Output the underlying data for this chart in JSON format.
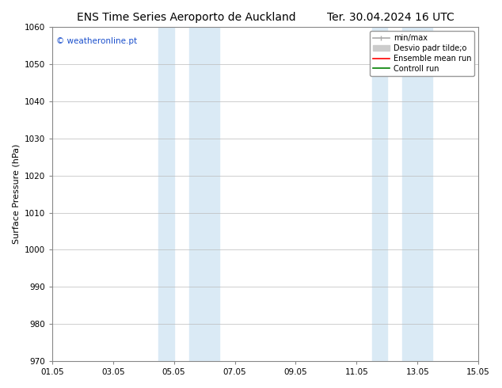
{
  "title_left": "ENS Time Series Aeroporto de Auckland",
  "title_right": "Ter. 30.04.2024 16 UTC",
  "ylabel": "Surface Pressure (hPa)",
  "xlim": [
    0,
    14
  ],
  "ylim": [
    970,
    1060
  ],
  "yticks": [
    970,
    980,
    990,
    1000,
    1010,
    1020,
    1030,
    1040,
    1050,
    1060
  ],
  "xtick_labels": [
    "01.05",
    "03.05",
    "05.05",
    "07.05",
    "09.05",
    "11.05",
    "13.05",
    "15.05"
  ],
  "xtick_positions": [
    0,
    2,
    4,
    6,
    8,
    10,
    12,
    14
  ],
  "shaded_bands": [
    {
      "x_start": 3.5,
      "x_end": 4.0
    },
    {
      "x_start": 4.5,
      "x_end": 5.5
    },
    {
      "x_start": 10.5,
      "x_end": 11.0
    },
    {
      "x_start": 11.5,
      "x_end": 12.5
    }
  ],
  "shaded_color": "#daeaf5",
  "watermark_text": "© weatheronline.pt",
  "watermark_color": "#1a4fcc",
  "bg_color": "#ffffff",
  "grid_color": "#bbbbbb",
  "title_fontsize": 10,
  "axis_label_fontsize": 8,
  "tick_fontsize": 7.5
}
